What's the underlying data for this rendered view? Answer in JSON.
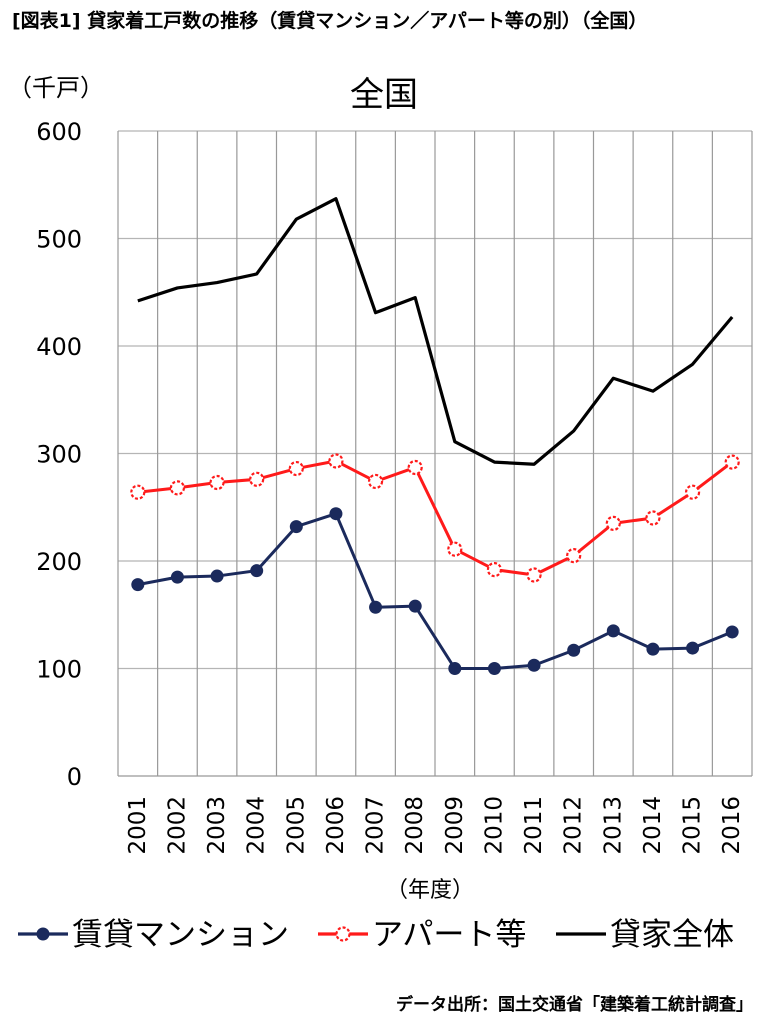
{
  "header": "[図表1] 貸家着工戸数の推移（賃貸マンション／アパート等の別）（全国）",
  "source": "データ出所：国土交通省「建築着工統計調査」",
  "chart_data": {
    "type": "line",
    "title": "全国",
    "ylabel": "（千戸）",
    "xlabel": "（年度）",
    "ylim": [
      0,
      600
    ],
    "yticks": [
      "0",
      "100",
      "200",
      "300",
      "400",
      "500",
      "600"
    ],
    "grid": true,
    "legend_position": "bottom",
    "categories": [
      "2001",
      "2002",
      "2003",
      "2004",
      "2005",
      "2006",
      "2007",
      "2008",
      "2009",
      "2010",
      "2011",
      "2012",
      "2013",
      "2014",
      "2015",
      "2016"
    ],
    "series": [
      {
        "name": "賃貸マンション",
        "color": "#1b2a5c",
        "marker": "filled-circle",
        "values": [
          178,
          185,
          186,
          191,
          232,
          244,
          157,
          158,
          100,
          100,
          103,
          117,
          135,
          118,
          119,
          134
        ]
      },
      {
        "name": "アパート等",
        "color": "#ff1a1a",
        "marker": "open-circle",
        "values": [
          264,
          268,
          273,
          276,
          286,
          293,
          274,
          287,
          211,
          192,
          187,
          205,
          235,
          240,
          264,
          292
        ]
      },
      {
        "name": "貸家全体",
        "color": "#000000",
        "marker": "none",
        "values": [
          442,
          454,
          459,
          467,
          518,
          537,
          431,
          445,
          311,
          292,
          290,
          321,
          370,
          358,
          383,
          427
        ]
      }
    ]
  }
}
